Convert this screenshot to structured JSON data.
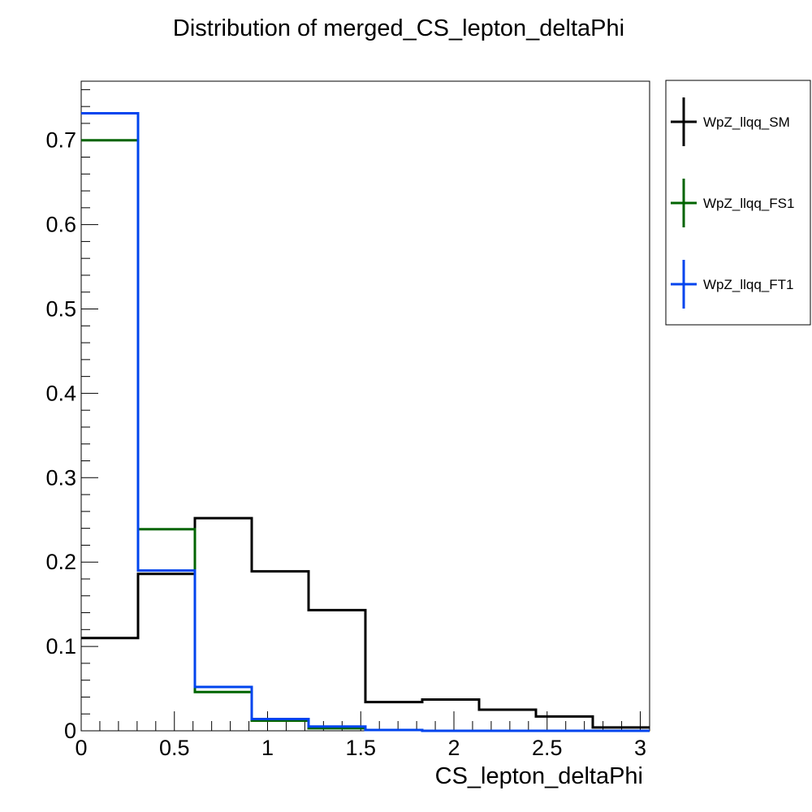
{
  "chart_data": {
    "type": "histogram",
    "title": "Distribution of merged_CS_lepton_deltaPhi",
    "xlabel": "CS_lepton_deltaPhi",
    "ylabel": "",
    "xlim": [
      0,
      3.05
    ],
    "ylim": [
      0,
      0.77
    ],
    "grid": false,
    "legend_position": "right-outside",
    "x_ticks": [
      0,
      0.5,
      1,
      1.5,
      2,
      2.5,
      3
    ],
    "x_tick_labels": [
      "0",
      "0.5",
      "1",
      "1.5",
      "2",
      "2.5",
      "3"
    ],
    "y_ticks": [
      0,
      0.1,
      0.2,
      0.3,
      0.4,
      0.5,
      0.6,
      0.7
    ],
    "y_tick_labels": [
      "0",
      "0.1",
      "0.2",
      "0.3",
      "0.4",
      "0.5",
      "0.6",
      "0.7"
    ],
    "bin_edges": [
      0,
      0.305,
      0.61,
      0.915,
      1.22,
      1.525,
      1.83,
      2.135,
      2.44,
      2.745,
      3.05
    ],
    "series": [
      {
        "name": "WpZ_llqq_SM",
        "color": "#000000",
        "values": [
          0.11,
          0.186,
          0.252,
          0.189,
          0.143,
          0.034,
          0.037,
          0.025,
          0.017,
          0.004
        ]
      },
      {
        "name": "WpZ_llqq_FS1",
        "color": "#006400",
        "values": [
          0.7,
          0.239,
          0.046,
          0.012,
          0.003,
          0.001,
          0.0,
          0.0,
          0.0,
          0.0
        ]
      },
      {
        "name": "WpZ_llqq_FT1",
        "color": "#0044ee",
        "values": [
          0.732,
          0.19,
          0.052,
          0.014,
          0.005,
          0.001,
          0.0,
          0.0,
          0.0,
          0.0
        ]
      }
    ]
  }
}
